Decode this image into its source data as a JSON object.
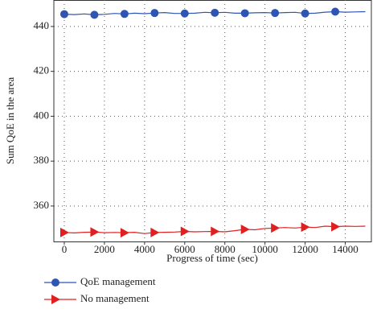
{
  "chart_data": {
    "type": "line",
    "x_label": "Progress of time (sec)",
    "y_label": "Sum QoE in the area",
    "x": [
      0,
      500,
      1000,
      1500,
      2000,
      2500,
      3000,
      3500,
      4000,
      4500,
      5000,
      5500,
      6000,
      6500,
      7000,
      7500,
      8000,
      8500,
      9000,
      9500,
      10000,
      10500,
      11000,
      11500,
      12000,
      12500,
      13000,
      13500,
      14000,
      14500,
      15000
    ],
    "series": [
      {
        "name": "QoE management",
        "color": "#2f55b3",
        "marker": "circle",
        "values": [
          445.5,
          445.3,
          445.6,
          445.2,
          445.4,
          445.8,
          445.6,
          445.9,
          445.7,
          446,
          446.2,
          445.8,
          445.8,
          445.9,
          446.3,
          446.1,
          446.3,
          445.9,
          445.9,
          446.1,
          446.2,
          446,
          446.2,
          446.3,
          445.8,
          445.9,
          446.4,
          446.6,
          446.4,
          446.5,
          446.6
        ]
      },
      {
        "name": "No management",
        "color": "#e02020",
        "marker": "triangle",
        "values": [
          348.2,
          348,
          348.3,
          348.4,
          348.1,
          348.2,
          348.1,
          348.3,
          347.7,
          348.2,
          348.3,
          348.4,
          348.7,
          348.5,
          348.6,
          348.7,
          348.5,
          349,
          349.6,
          349.4,
          350,
          350.2,
          350.4,
          350.2,
          350.6,
          350.4,
          351,
          350.8,
          351,
          350.9,
          351
        ]
      }
    ],
    "xlim": [
      -520,
      15300
    ],
    "ylim": [
      344.2,
      451.8
    ],
    "xticks": [
      0,
      2000,
      4000,
      6000,
      8000,
      10000,
      12000,
      14000
    ],
    "yticks": [
      360,
      380,
      400,
      420,
      440
    ],
    "grid": true,
    "legend": "bottom"
  }
}
